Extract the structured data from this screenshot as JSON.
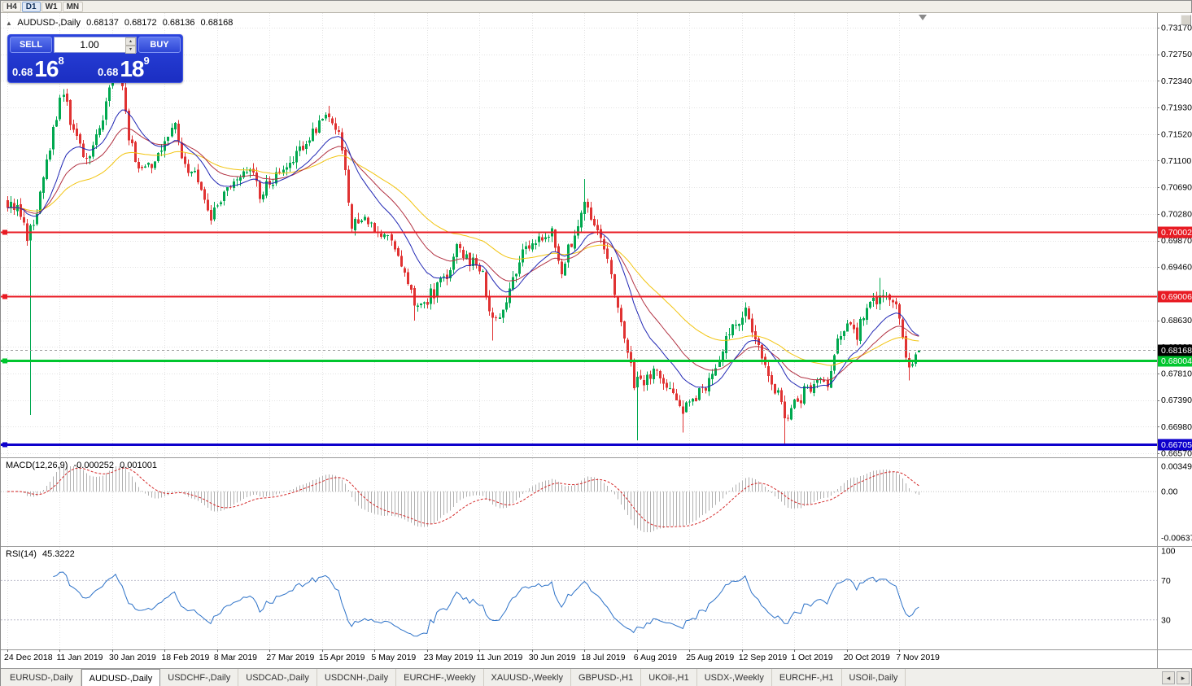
{
  "window": {
    "timeframes": [
      "H4",
      "D1",
      "W1",
      "MN"
    ],
    "active_timeframe": "D1"
  },
  "chart": {
    "legend": {
      "symbol": "AUDUSD-,Daily",
      "open": "0.68137",
      "high": "0.68172",
      "low": "0.68136",
      "close": "0.68168"
    },
    "one_click": {
      "sell_label": "SELL",
      "buy_label": "BUY",
      "volume": "1.00",
      "sell_price": {
        "base": "0.68",
        "big": "16",
        "sup": "8"
      },
      "buy_price": {
        "base": "0.68",
        "big": "18",
        "sup": "9"
      }
    },
    "price_axis_ticks": [
      "0.73170",
      "0.72750",
      "0.72340",
      "0.71930",
      "0.71520",
      "0.71100",
      "0.70690",
      "0.70280",
      "0.69870",
      "0.69460",
      "0.69050",
      "0.68630",
      "0.68220",
      "0.67810",
      "0.67390",
      "0.66980",
      "0.66570"
    ],
    "date_axis_ticks": [
      "24 Dec 2018",
      "11 Jan 2019",
      "30 Jan 2019",
      "18 Feb 2019",
      "8 Mar 2019",
      "27 Mar 2019",
      "15 Apr 2019",
      "5 May 2019",
      "23 May 2019",
      "11 Jun 2019",
      "30 Jun 2019",
      "18 Jul 2019",
      "6 Aug 2019",
      "25 Aug 2019",
      "12 Sep 2019",
      "1 Oct 2019",
      "20 Oct 2019",
      "7 Nov 2019"
    ],
    "levels": [
      {
        "label": "0.70002",
        "price": 0.70002,
        "color": "#e81b23",
        "width": 2
      },
      {
        "label": "0.69006",
        "price": 0.69006,
        "color": "#e81b23",
        "width": 2
      },
      {
        "label": "0.68004",
        "price": 0.68004,
        "color": "#00c62e",
        "width": 3
      },
      {
        "label": "0.66705",
        "price": 0.66705,
        "color": "#0d00cc",
        "width": 3
      }
    ],
    "bid_line": {
      "label": "0.68168",
      "price": 0.68168
    },
    "candles_between_labels": 16,
    "candle_count": 279,
    "last_candle": {
      "o": 0.68137,
      "h": 0.68172,
      "l": 0.68136,
      "c": 0.68168
    },
    "close_waypoints": [
      [
        0,
        0.7048
      ],
      [
        4,
        0.703
      ],
      [
        6,
        0.6992
      ],
      [
        8,
        0.701
      ],
      [
        11,
        0.7095
      ],
      [
        14,
        0.7155
      ],
      [
        17,
        0.722
      ],
      [
        20,
        0.715
      ],
      [
        24,
        0.7118
      ],
      [
        28,
        0.716
      ],
      [
        31,
        0.7215
      ],
      [
        33,
        0.7262
      ],
      [
        35,
        0.723
      ],
      [
        37,
        0.715
      ],
      [
        40,
        0.7095
      ],
      [
        44,
        0.7108
      ],
      [
        48,
        0.714
      ],
      [
        51,
        0.7165
      ],
      [
        54,
        0.7105
      ],
      [
        58,
        0.7082
      ],
      [
        62,
        0.7022
      ],
      [
        66,
        0.7062
      ],
      [
        70,
        0.7088
      ],
      [
        74,
        0.7108
      ],
      [
        77,
        0.7062
      ],
      [
        81,
        0.7082
      ],
      [
        85,
        0.7102
      ],
      [
        90,
        0.713
      ],
      [
        95,
        0.7168
      ],
      [
        98,
        0.7188
      ],
      [
        101,
        0.715
      ],
      [
        103,
        0.7098
      ],
      [
        105,
        0.7012
      ],
      [
        109,
        0.703
      ],
      [
        113,
        0.6988
      ],
      [
        117,
        0.6996
      ],
      [
        121,
        0.693
      ],
      [
        125,
        0.688
      ],
      [
        129,
        0.6902
      ],
      [
        133,
        0.6925
      ],
      [
        137,
        0.6972
      ],
      [
        141,
        0.6958
      ],
      [
        145,
        0.693
      ],
      [
        148,
        0.6858
      ],
      [
        151,
        0.6885
      ],
      [
        154,
        0.6928
      ],
      [
        158,
        0.6975
      ],
      [
        162,
        0.6992
      ],
      [
        166,
        0.7002
      ],
      [
        169,
        0.6942
      ],
      [
        172,
        0.6985
      ],
      [
        176,
        0.704
      ],
      [
        179,
        0.7008
      ],
      [
        182,
        0.6972
      ],
      [
        185,
        0.6902
      ],
      [
        188,
        0.6832
      ],
      [
        191,
        0.6768
      ],
      [
        194,
        0.6762
      ],
      [
        197,
        0.6792
      ],
      [
        200,
        0.6775
      ],
      [
        203,
        0.6748
      ],
      [
        206,
        0.6725
      ],
      [
        209,
        0.6742
      ],
      [
        213,
        0.6758
      ],
      [
        217,
        0.6808
      ],
      [
        221,
        0.6855
      ],
      [
        225,
        0.6882
      ],
      [
        228,
        0.6835
      ],
      [
        231,
        0.6788
      ],
      [
        234,
        0.676
      ],
      [
        237,
        0.6716
      ],
      [
        240,
        0.6732
      ],
      [
        243,
        0.6752
      ],
      [
        247,
        0.6768
      ],
      [
        250,
        0.6758
      ],
      [
        253,
        0.6832
      ],
      [
        256,
        0.6862
      ],
      [
        259,
        0.684
      ],
      [
        262,
        0.6885
      ],
      [
        265,
        0.6898
      ],
      [
        268,
        0.6905
      ],
      [
        271,
        0.688
      ],
      [
        273,
        0.684
      ],
      [
        275,
        0.6792
      ],
      [
        277,
        0.6815
      ],
      [
        278,
        0.6817
      ]
    ],
    "wick_extremes": [
      {
        "i": 7,
        "low": 0.6716
      },
      {
        "i": 33,
        "high": 0.7272
      },
      {
        "i": 98,
        "high": 0.7196
      },
      {
        "i": 124,
        "low": 0.6863
      },
      {
        "i": 148,
        "low": 0.6832
      },
      {
        "i": 176,
        "high": 0.7082
      },
      {
        "i": 192,
        "low": 0.6677
      },
      {
        "i": 206,
        "low": 0.6689
      },
      {
        "i": 237,
        "low": 0.6671
      },
      {
        "i": 266,
        "high": 0.6929
      },
      {
        "i": 275,
        "low": 0.677
      }
    ],
    "colors": {
      "up": "#00a84f",
      "down": "#e03232",
      "ma_fast": "#2026b4",
      "ma_mid": "#b23242",
      "ma_slow": "#f2c40f"
    }
  },
  "macd": {
    "name": "MACD(12,26,9)",
    "value_main": "-0.000252",
    "value_signal": "0.001001",
    "axis_ticks": [
      "0.00349",
      "0.00",
      "-0.00637"
    ],
    "max": 0.00349,
    "min": -0.00637,
    "fast": 12,
    "slow": 26,
    "signal": 9
  },
  "rsi": {
    "name": "RSI(14)",
    "value": "45.3222",
    "axis_ticks": [
      "100",
      "70",
      "30"
    ],
    "levels": [
      70,
      30
    ],
    "period": 14
  },
  "tabs": {
    "items": [
      "EURUSD-,Daily",
      "AUDUSD-,Daily",
      "USDCHF-,Daily",
      "USDCAD-,Daily",
      "USDCNH-,Daily",
      "EURCHF-,Weekly",
      "XAUUSD-,Weekly",
      "GBPUSD-,H1",
      "UKOil-,H1",
      "USDX-,Weekly",
      "EURCHF-,H1",
      "USOil-,Daily"
    ],
    "active": "AUDUSD-,Daily"
  }
}
